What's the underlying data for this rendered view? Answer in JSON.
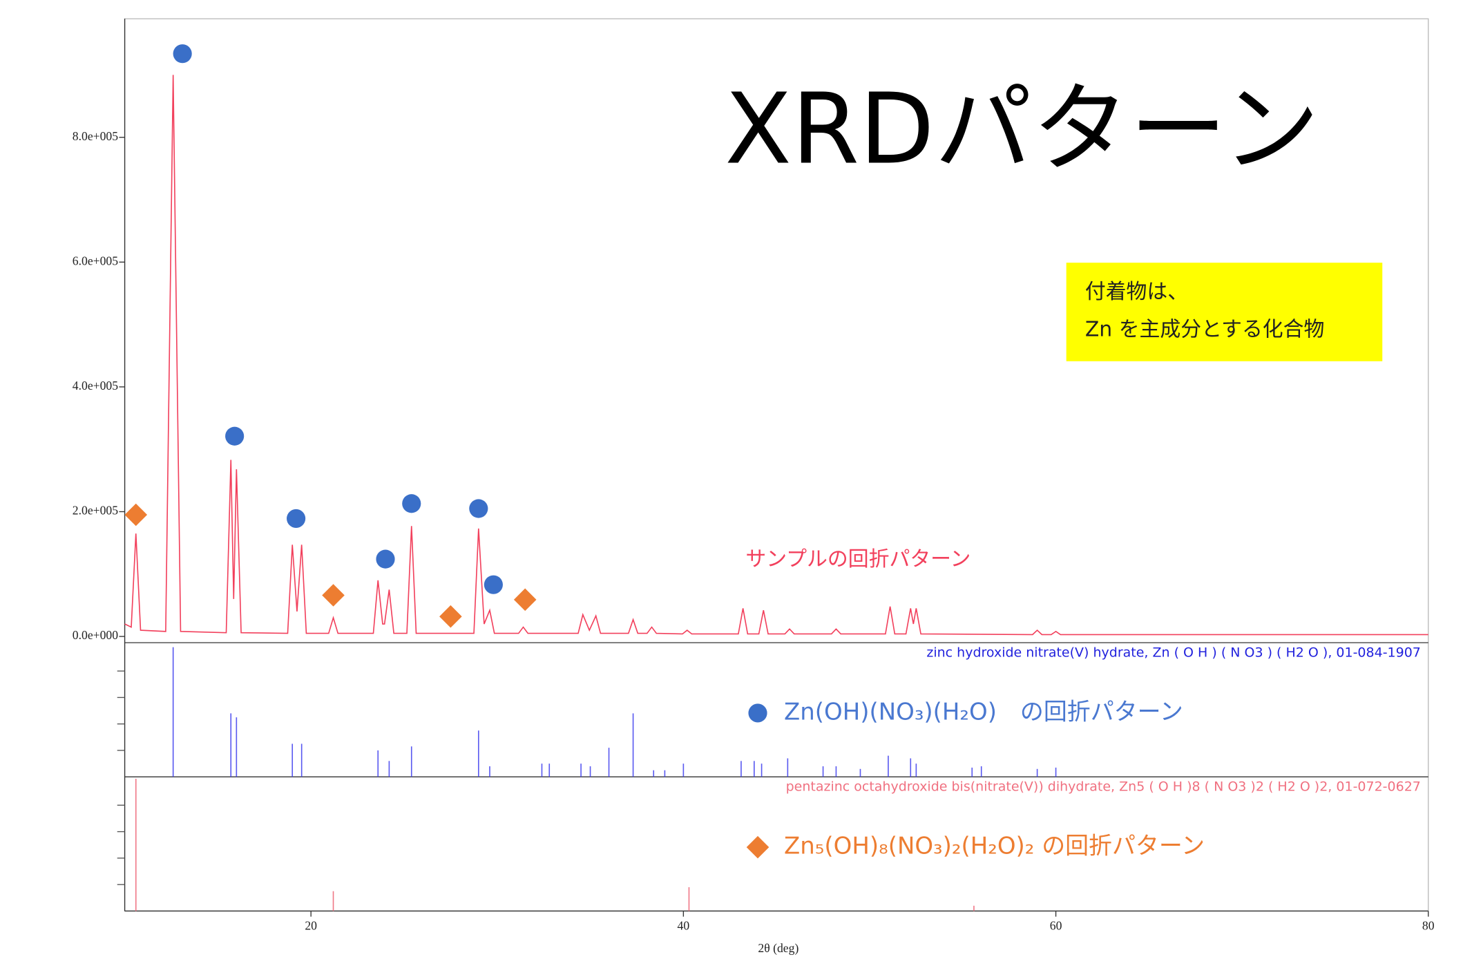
{
  "chart_data": {
    "type": "line",
    "title": "XRDパターン",
    "annotation_box": [
      "付着物は、",
      "Zn を主成分とする化合物"
    ],
    "x_label": "2θ (deg)",
    "xlim": [
      10,
      80
    ],
    "xticks": [
      20,
      40,
      60,
      80
    ],
    "ylim": [
      -10000,
      990000
    ],
    "yticks": [
      {
        "value": 0,
        "label": "0.0e+000"
      },
      {
        "value": 200000,
        "label": "2.0e+005"
      },
      {
        "value": 400000,
        "label": "4.0e+005"
      },
      {
        "value": 600000,
        "label": "6.0e+005"
      },
      {
        "value": 800000,
        "label": "8.0e+005"
      }
    ],
    "x": [
      10.0,
      10.35,
      10.6,
      10.85,
      12.2,
      12.6,
      13.0,
      15.45,
      15.7,
      15.85,
      16.0,
      16.25,
      18.75,
      19.0,
      19.25,
      19.5,
      19.75,
      20.95,
      21.2,
      21.45,
      23.35,
      23.6,
      23.85,
      23.95,
      24.2,
      24.45,
      25.15,
      25.4,
      25.65,
      28.75,
      29.0,
      29.3,
      29.6,
      29.85,
      31.15,
      31.4,
      31.65,
      34.35,
      34.6,
      34.95,
      35.3,
      35.55,
      37.05,
      37.3,
      37.55,
      38.05,
      38.3,
      38.55,
      39.95,
      40.2,
      40.45,
      42.95,
      43.2,
      43.45,
      44.05,
      44.3,
      44.55,
      45.45,
      45.7,
      45.95,
      47.95,
      48.2,
      48.45,
      50.85,
      51.1,
      51.35,
      51.95,
      52.2,
      52.35,
      52.5,
      52.75,
      58.75,
      59.0,
      59.25,
      59.75,
      60.0,
      60.25,
      80.0
    ],
    "series": [
      {
        "name": "サンプルの回折パターン",
        "color": "#f2405c",
        "values": [
          20000,
          15000,
          165000,
          10000,
          8000,
          900000,
          8000,
          6000,
          283000,
          60000,
          268000,
          6000,
          5000,
          147000,
          40000,
          147000,
          5000,
          5000,
          30000,
          5000,
          5000,
          90000,
          20000,
          20000,
          75000,
          5000,
          5000,
          177000,
          5000,
          5000,
          173000,
          20000,
          42000,
          5000,
          5000,
          15000,
          5000,
          5000,
          35000,
          10000,
          33000,
          5000,
          5000,
          27000,
          5000,
          5000,
          15000,
          5000,
          4000,
          10000,
          4000,
          4000,
          45000,
          4000,
          4000,
          42000,
          4000,
          4000,
          12000,
          4000,
          4000,
          12000,
          4000,
          4000,
          48000,
          4000,
          4000,
          45000,
          20000,
          45000,
          4000,
          3000,
          10000,
          3000,
          3000,
          8000,
          3000,
          3000
        ]
      }
    ],
    "ref_ylim": [
      0,
      100
    ],
    "ref_yticks": [
      20,
      40,
      60,
      80
    ],
    "references": [
      {
        "name": "zinc hydroxide nitrate(V) hydrate, Zn ( O H ) ( N O3 ) ( H2 O ), 01-084-1907",
        "legend": "Zn(OH)(NO₃)(H₂O)　の回折パターン",
        "color": "#5a5af0",
        "marker": "circle",
        "marker_color": "#3a6fc8",
        "legend_color": "#4a78d0",
        "positions": [
          12.6,
          15.7,
          16.0,
          19.0,
          19.5,
          23.6,
          24.2,
          25.4,
          29.0,
          29.6,
          32.4,
          32.8,
          34.5,
          35.0,
          36.0,
          37.3,
          38.4,
          39.0,
          40.0,
          43.1,
          43.8,
          44.2,
          45.6,
          47.5,
          48.2,
          49.5,
          51.0,
          52.2,
          52.5,
          55.5,
          56.0,
          59.0,
          60.0
        ],
        "intensities": [
          98,
          48,
          45,
          25,
          25,
          20,
          12,
          23,
          35,
          8,
          10,
          10,
          10,
          8,
          22,
          48,
          5,
          5,
          10,
          12,
          12,
          10,
          14,
          8,
          8,
          6,
          16,
          14,
          10,
          7,
          8,
          6,
          7
        ],
        "marker_x": [
          13.1,
          15.9,
          19.2,
          24.0,
          25.4,
          29.0,
          29.8
        ],
        "marker_values": [
          934000,
          321000,
          189000,
          124000,
          213000,
          205000,
          83000
        ]
      },
      {
        "name": "pentazinc octahydroxide bis(nitrate(V)) dihydrate, Zn5 ( O H )8 ( N O3 )2 ( H2 O )2, 01-072-0627",
        "legend": "Zn₅(OH)₈(NO₃)₂(H₂O)₂ の回折パターン",
        "color": "#f07888",
        "marker": "diamond",
        "marker_color": "#ed7d31",
        "legend_color": "#ed7d31",
        "positions": [
          10.6,
          21.2,
          40.3,
          55.6
        ],
        "intensities": [
          100,
          15,
          18,
          4
        ],
        "marker_x": [
          10.6,
          21.2,
          27.5,
          31.5
        ],
        "marker_values": [
          195000,
          66000,
          32000,
          59000
        ]
      }
    ]
  }
}
